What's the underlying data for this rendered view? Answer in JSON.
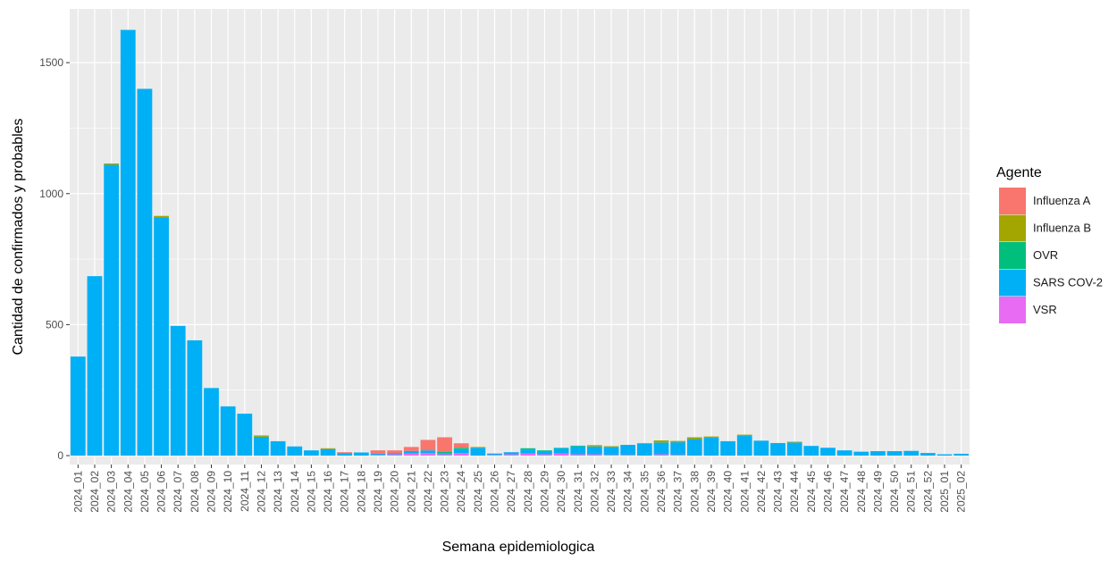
{
  "chart_data": {
    "type": "stacked_bar",
    "x_label": "Semana epidemiologica",
    "y_label": "Cantidad de confirmados y probables",
    "legend_title": "Agente",
    "legend_position": "right",
    "grid": true,
    "categories": [
      "2024_01",
      "2024_02",
      "2024_03",
      "2024_04",
      "2024_05",
      "2024_06",
      "2024_07",
      "2024_08",
      "2024_09",
      "2024_10",
      "2024_11",
      "2024_12",
      "2024_13",
      "2024_14",
      "2024_15",
      "2024_16",
      "2024_17",
      "2024_18",
      "2024_19",
      "2024_20",
      "2024_21",
      "2024_22",
      "2024_23",
      "2024_24",
      "2024_25",
      "2024_26",
      "2024_27",
      "2024_28",
      "2024_29",
      "2024_30",
      "2024_31",
      "2024_32",
      "2024_33",
      "2024_34",
      "2024_35",
      "2024_36",
      "2024_37",
      "2024_38",
      "2024_39",
      "2024_40",
      "2024_41",
      "2024_42",
      "2024_43",
      "2024_44",
      "2024_45",
      "2024_46",
      "2024_47",
      "2024_48",
      "2024_49",
      "2024_50",
      "2024_51",
      "2024_52",
      "2025_01",
      "2025_02"
    ],
    "series": [
      {
        "name": "Influenza A",
        "color": "#F8766D",
        "values": [
          0,
          0,
          0,
          0,
          0,
          0,
          0,
          0,
          0,
          0,
          0,
          0,
          0,
          0,
          0,
          0,
          3,
          0,
          12,
          10,
          15,
          40,
          55,
          17,
          0,
          0,
          0,
          0,
          0,
          0,
          0,
          0,
          0,
          0,
          0,
          0,
          0,
          0,
          0,
          0,
          0,
          0,
          0,
          0,
          0,
          0,
          0,
          0,
          0,
          0,
          0,
          0,
          0,
          0
        ]
      },
      {
        "name": "Influenza B",
        "color": "#A3A500",
        "values": [
          0,
          0,
          5,
          0,
          0,
          5,
          0,
          0,
          0,
          0,
          0,
          5,
          0,
          0,
          0,
          3,
          0,
          0,
          0,
          0,
          0,
          0,
          0,
          0,
          3,
          0,
          0,
          0,
          0,
          0,
          0,
          5,
          3,
          0,
          3,
          8,
          5,
          7,
          5,
          0,
          5,
          0,
          0,
          3,
          0,
          0,
          0,
          0,
          0,
          0,
          0,
          0,
          0,
          0
        ]
      },
      {
        "name": "OVR",
        "color": "#00BF7D",
        "values": [
          0,
          0,
          0,
          0,
          0,
          0,
          0,
          0,
          0,
          0,
          0,
          0,
          0,
          0,
          0,
          0,
          0,
          0,
          0,
          0,
          0,
          0,
          5,
          5,
          0,
          0,
          0,
          5,
          3,
          2,
          3,
          0,
          0,
          0,
          0,
          0,
          0,
          0,
          0,
          0,
          0,
          0,
          0,
          0,
          0,
          0,
          0,
          0,
          0,
          0,
          0,
          0,
          0,
          0
        ]
      },
      {
        "name": "SARS COV-2",
        "color": "#00B0F6",
        "values": [
          378,
          685,
          1110,
          1625,
          1400,
          910,
          495,
          440,
          258,
          188,
          160,
          72,
          55,
          35,
          20,
          25,
          10,
          12,
          5,
          5,
          10,
          10,
          5,
          15,
          30,
          5,
          8,
          15,
          12,
          20,
          30,
          30,
          30,
          38,
          45,
          45,
          48,
          63,
          68,
          55,
          75,
          57,
          48,
          50,
          37,
          30,
          20,
          15,
          17,
          17,
          18,
          10,
          5,
          7
        ]
      },
      {
        "name": "VSR",
        "color": "#E76BF3",
        "values": [
          0,
          0,
          0,
          0,
          0,
          0,
          0,
          0,
          0,
          0,
          0,
          0,
          0,
          0,
          0,
          0,
          0,
          0,
          3,
          5,
          8,
          10,
          5,
          10,
          0,
          3,
          5,
          8,
          5,
          8,
          5,
          5,
          3,
          3,
          0,
          5,
          3,
          0,
          0,
          0,
          0,
          0,
          0,
          0,
          0,
          0,
          0,
          0,
          0,
          0,
          0,
          0,
          0,
          0
        ]
      }
    ],
    "ylim": [
      -34,
      1705
    ],
    "yticks": [
      0,
      500,
      1000,
      1500
    ]
  }
}
